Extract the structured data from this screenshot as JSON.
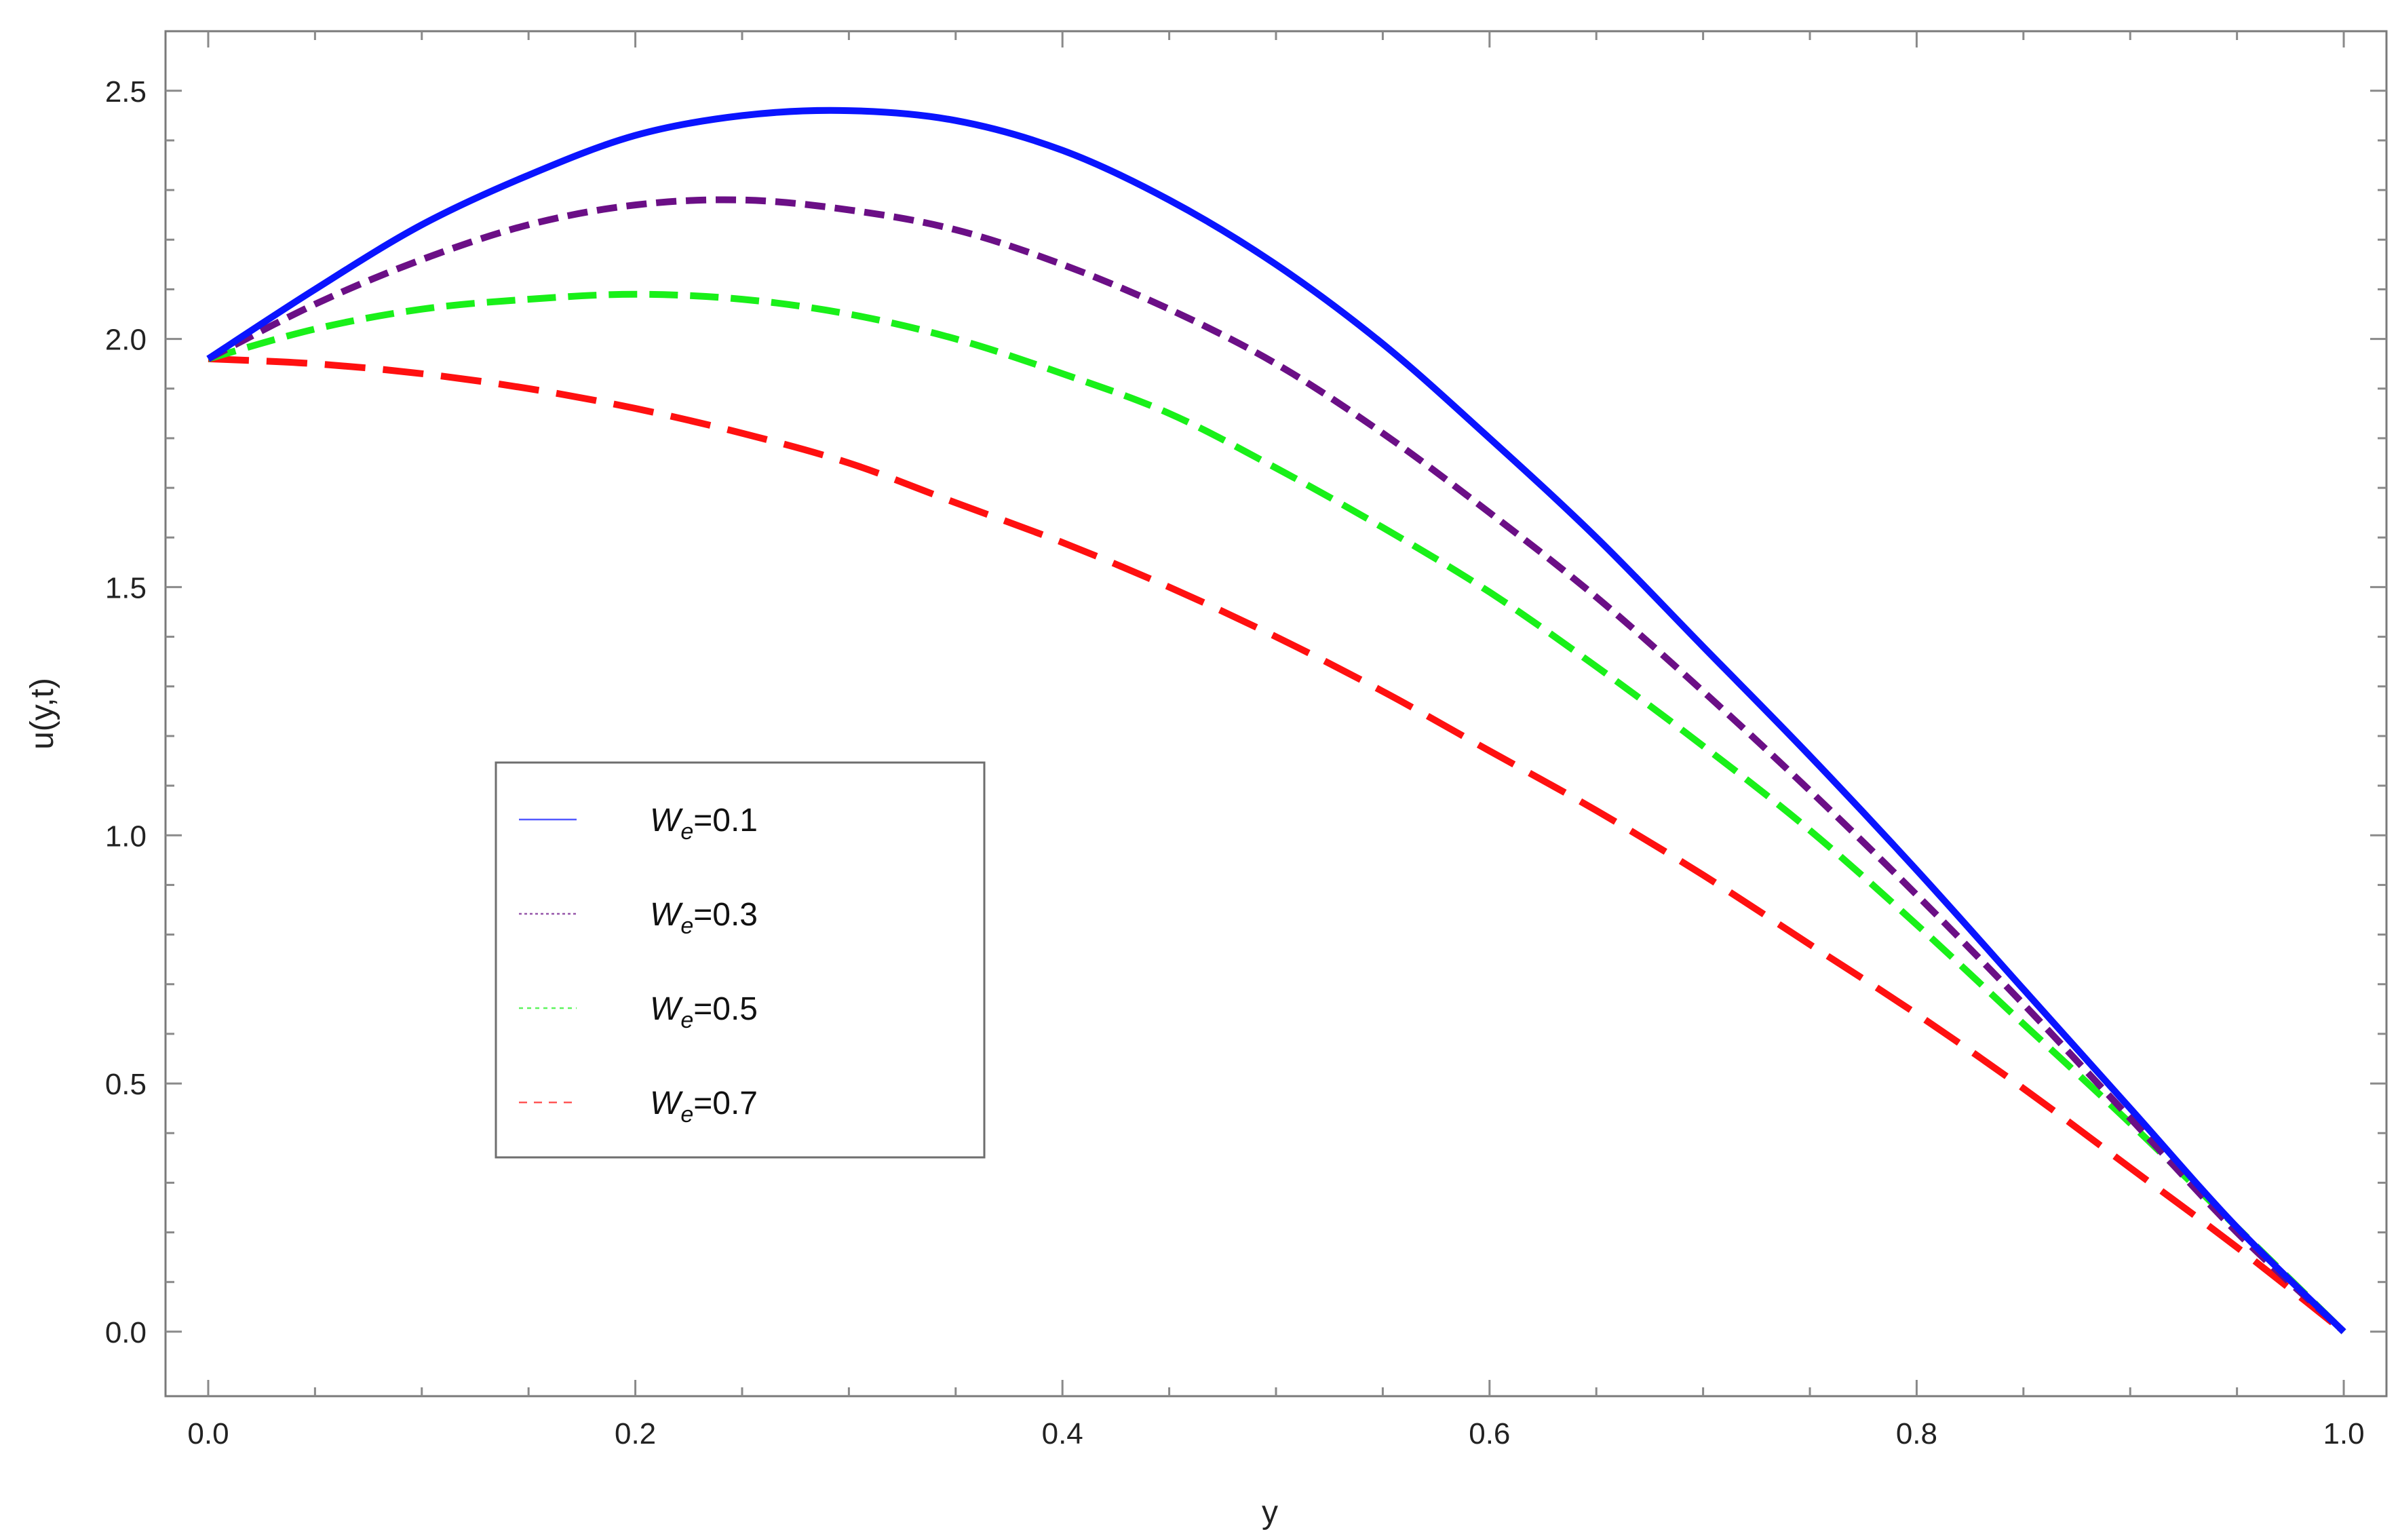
{
  "chart_data": {
    "type": "line",
    "title": "",
    "xlabel": "y",
    "ylabel": "u(y,t)",
    "xlim": [
      -0.02,
      1.02
    ],
    "ylim": [
      -0.13,
      2.62
    ],
    "x_ticks": [
      "0.0",
      "0.2",
      "0.4",
      "0.6",
      "0.8",
      "1.0"
    ],
    "y_ticks": [
      "0.0",
      "0.5",
      "1.0",
      "1.5",
      "2.0",
      "2.5"
    ],
    "grid": false,
    "legend_position": "center-left",
    "x": [
      0.0,
      0.05,
      0.1,
      0.15,
      0.2,
      0.25,
      0.3,
      0.35,
      0.4,
      0.45,
      0.5,
      0.55,
      0.6,
      0.65,
      0.7,
      0.75,
      0.8,
      0.85,
      0.9,
      0.95,
      1.0
    ],
    "series": [
      {
        "name": "0.1",
        "legend_symbol": "W",
        "legend_subscript": "e",
        "legend_prefix": "=",
        "color": "#0a14ff",
        "dash": "",
        "values": [
          1.96,
          2.1,
          2.23,
          2.33,
          2.41,
          2.45,
          2.46,
          2.44,
          2.38,
          2.28,
          2.15,
          1.99,
          1.8,
          1.6,
          1.38,
          1.16,
          0.93,
          0.69,
          0.45,
          0.21,
          0.0
        ]
      },
      {
        "name": "0.3",
        "legend_symbol": "W",
        "legend_subscript": "e",
        "legend_prefix": "=",
        "color": "#6b0f86",
        "dash": "30 14",
        "values": [
          1.96,
          2.07,
          2.16,
          2.23,
          2.27,
          2.28,
          2.26,
          2.22,
          2.15,
          2.06,
          1.95,
          1.81,
          1.65,
          1.48,
          1.29,
          1.09,
          0.88,
          0.66,
          0.43,
          0.2,
          0.0
        ]
      },
      {
        "name": "0.5",
        "legend_symbol": "W",
        "legend_subscript": "e",
        "legend_prefix": "=",
        "color": "#19f019",
        "dash": "42 18",
        "values": [
          1.96,
          2.02,
          2.06,
          2.08,
          2.09,
          2.08,
          2.05,
          2.0,
          1.93,
          1.85,
          1.74,
          1.62,
          1.49,
          1.34,
          1.18,
          1.01,
          0.82,
          0.62,
          0.42,
          0.21,
          0.0
        ]
      },
      {
        "name": "0.7",
        "legend_symbol": "W",
        "legend_subscript": "e",
        "legend_prefix": "=",
        "color": "#ff1010",
        "dash": "60 26",
        "values": [
          1.96,
          1.95,
          1.93,
          1.9,
          1.86,
          1.81,
          1.75,
          1.67,
          1.59,
          1.5,
          1.4,
          1.29,
          1.17,
          1.05,
          0.92,
          0.78,
          0.64,
          0.49,
          0.33,
          0.17,
          0.0
        ]
      }
    ]
  }
}
